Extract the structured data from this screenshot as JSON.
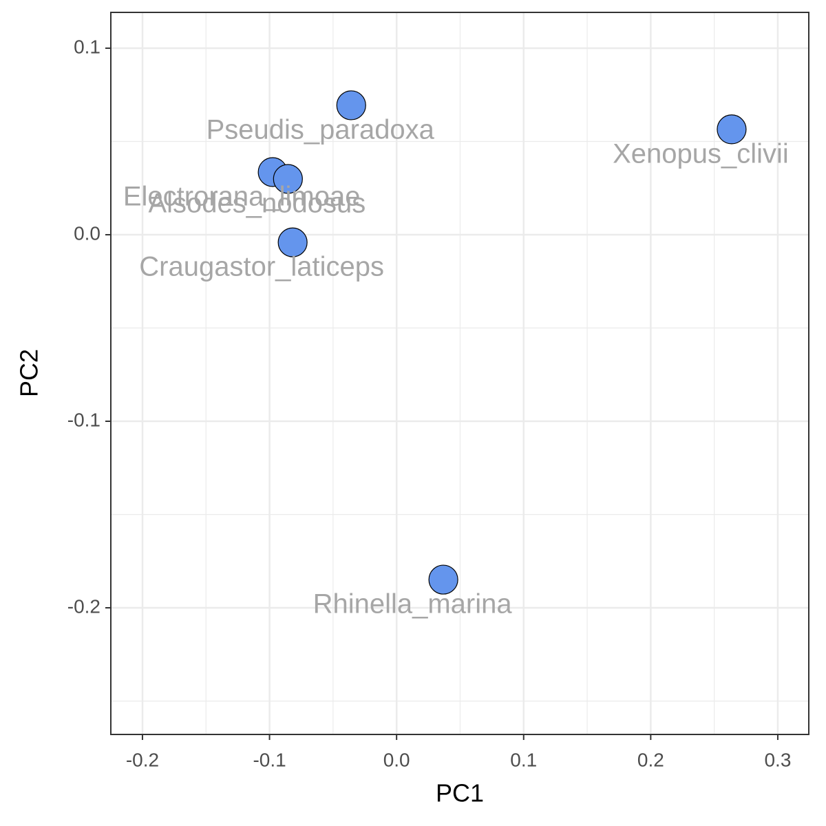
{
  "chart_data": {
    "type": "scatter",
    "x_label": "PC1",
    "y_label": "PC2",
    "labels": [
      "Pseudis_paradoxa",
      "Xenopus_clivii",
      "Electrorana_limoae",
      "Alsodes_nodosus",
      "Craugastor_laticeps",
      "Rhinella_marina"
    ],
    "x": [
      -0.0357,
      0.2637,
      -0.0975,
      -0.0855,
      -0.0818,
      0.0368
    ],
    "y": [
      0.0694,
      0.0565,
      0.0336,
      0.0299,
      -0.0041,
      -0.1849
    ],
    "color": "#6495ed",
    "xlim": [
      -0.2249,
      0.3244
    ],
    "ylim": [
      -0.2679,
      0.1192
    ],
    "xticks": [
      -0.2,
      -0.1,
      {
        "value": 0,
        "label": "0.0"
      },
      0.1,
      0.2,
      0.3
    ],
    "yticks": [
      -0.2,
      -0.1,
      {
        "value": 0,
        "label": "0.0"
      },
      0.1
    ],
    "grid": true
  }
}
